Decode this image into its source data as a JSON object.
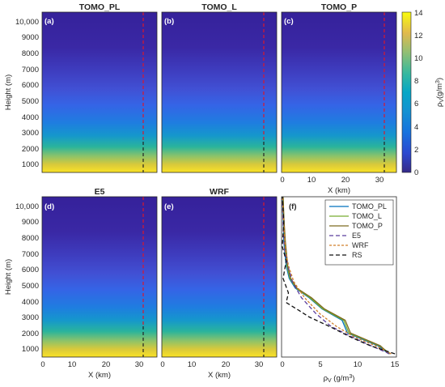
{
  "chart_data": [
    {
      "type": "heatmap",
      "panel": "(a)",
      "title": "TOMO_PL",
      "ylabel": "Height (m)",
      "y_ticks": [
        "1000",
        "2000",
        "3000",
        "4000",
        "5000",
        "6000",
        "7000",
        "8000",
        "9000",
        "10,000"
      ],
      "ylim": [
        300,
        10300
      ],
      "xlim": [
        0,
        35
      ],
      "marker_x": 31.5,
      "dashed_line_colors": [
        "#d9182d",
        "#222222"
      ]
    },
    {
      "type": "heatmap",
      "panel": "(b)",
      "title": "TOMO_L",
      "ylim": [
        300,
        10300
      ],
      "xlim": [
        0,
        35
      ],
      "marker_x": 31.5
    },
    {
      "type": "heatmap",
      "panel": "(c)",
      "title": "TOMO_P",
      "xlabel": "X (km)",
      "x_ticks": [
        "0",
        "10",
        "20",
        "30"
      ],
      "ylim": [
        300,
        10300
      ],
      "xlim": [
        0,
        35
      ],
      "marker_x": 31.5
    },
    {
      "type": "heatmap",
      "panel": "(d)",
      "title": "E5",
      "xlabel": "X (km)",
      "ylabel": "Height (m)",
      "x_ticks": [
        "0",
        "10",
        "20",
        "30"
      ],
      "y_ticks": [
        "1000",
        "2000",
        "3000",
        "4000",
        "5000",
        "6000",
        "7000",
        "8000",
        "9000",
        "10,000"
      ],
      "ylim": [
        300,
        10300
      ],
      "xlim": [
        0,
        35
      ],
      "marker_x": 31.5
    },
    {
      "type": "heatmap",
      "panel": "(e)",
      "title": "WRF",
      "xlabel": "X (km)",
      "x_ticks": [
        "0",
        "10",
        "20",
        "30"
      ],
      "ylim": [
        300,
        10300
      ],
      "xlim": [
        0,
        35
      ],
      "marker_x": 31.5
    },
    {
      "type": "line",
      "panel": "(f)",
      "xlabel": "ρ",
      "xlabel_sub": "V",
      "xlabel_unit": " (g/m",
      "xlabel_sup": "3",
      "xlabel_end": ")",
      "xlim": [
        0,
        15
      ],
      "ylim": [
        300,
        10300
      ],
      "x_ticks": [
        "0",
        "5",
        "10",
        "15"
      ],
      "legend_loc": "top-right",
      "series": [
        {
          "name": "TOMO_PL",
          "color": "#0072bd",
          "dash": "",
          "x": [
            14.0,
            12.6,
            8.6,
            7.9,
            5.3,
            3.6,
            1.8,
            1.0,
            0.6,
            0.3,
            0.2,
            0.1
          ],
          "y": [
            500,
            1000,
            1800,
            2600,
            3300,
            4000,
            4600,
            5200,
            6000,
            7500,
            9000,
            10300
          ]
        },
        {
          "name": "TOMO_L",
          "color": "#77ac30",
          "dash": "",
          "x": [
            14.2,
            12.8,
            8.8,
            8.1,
            5.4,
            3.7,
            1.9,
            1.1,
            0.7,
            0.4,
            0.3,
            0.2
          ],
          "y": [
            500,
            1000,
            1800,
            2600,
            3300,
            4000,
            4600,
            5200,
            6000,
            7500,
            9000,
            10300
          ]
        },
        {
          "name": "TOMO_P",
          "color": "#7e6b20",
          "dash": "",
          "x": [
            14.0,
            12.9,
            9.0,
            8.3,
            5.6,
            3.9,
            2.0,
            1.2,
            0.8,
            0.5,
            0.3,
            0.2
          ],
          "y": [
            500,
            1000,
            1800,
            2600,
            3300,
            4000,
            4600,
            5200,
            6000,
            7500,
            9000,
            10300
          ]
        },
        {
          "name": "E5",
          "color": "#5b3d9e",
          "dash": "5,3",
          "x": [
            14.1,
            11.7,
            9.4,
            6.5,
            4.5,
            2.6,
            1.4,
            0.8,
            0.4,
            0.2,
            0.1
          ],
          "y": [
            500,
            1000,
            1500,
            2200,
            3000,
            4000,
            5000,
            6000,
            7000,
            8500,
            10300
          ]
        },
        {
          "name": "WRF",
          "color": "#d17f2a",
          "dash": "3,2",
          "x": [
            14.3,
            12.3,
            9.7,
            7.2,
            5.0,
            3.0,
            1.6,
            0.9,
            0.5,
            0.3,
            0.1
          ],
          "y": [
            500,
            1000,
            1500,
            2200,
            3000,
            4000,
            5000,
            6000,
            7000,
            8500,
            10300
          ]
        },
        {
          "name": "RS",
          "color": "#111111",
          "dash": "5,3",
          "x": [
            14.8,
            11.6,
            9.2,
            6.3,
            3.6,
            2.3,
            0.6,
            0.9,
            0.2,
            0.6,
            0.1,
            0.3,
            0.1
          ],
          "y": [
            500,
            1000,
            1500,
            2200,
            2800,
            3200,
            3700,
            4300,
            5200,
            6300,
            7200,
            8800,
            10300
          ]
        }
      ]
    },
    {
      "type": "colorbar",
      "label": "ρ",
      "label_sub": "V",
      "label_unit": "(g/m",
      "label_sup": "3",
      "label_end": ")",
      "ticks": [
        "0",
        "2",
        "4",
        "6",
        "8",
        "10",
        "12",
        "14"
      ],
      "range": [
        0,
        14
      ]
    }
  ]
}
